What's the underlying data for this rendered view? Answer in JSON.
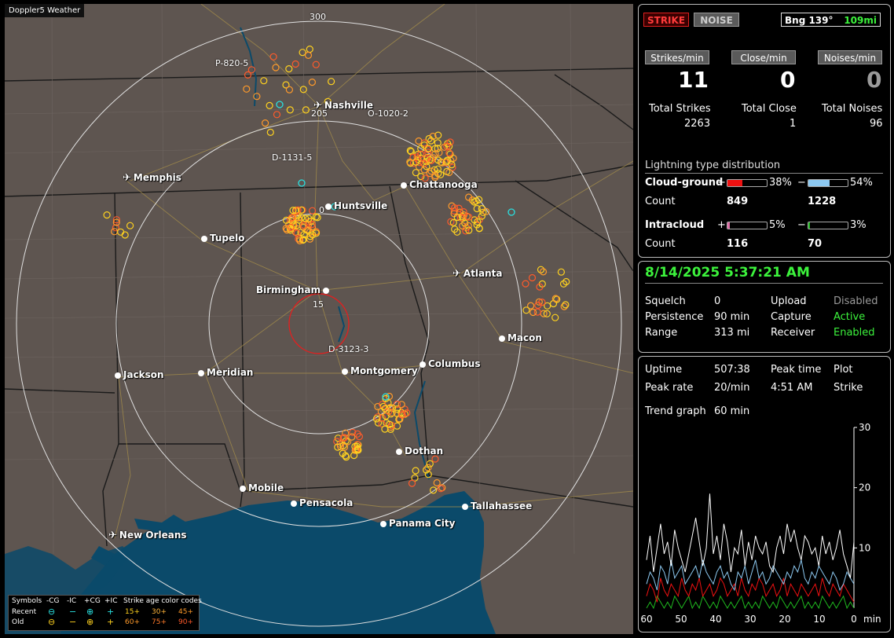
{
  "map": {
    "brand": "Doppler5 Weather",
    "ring_labels": [
      "300",
      "205",
      "15"
    ],
    "markers": [
      "P-820-5",
      "O-1020-2",
      "D-1131-5",
      "D-3123-3"
    ],
    "marker_near_huntsville": "0",
    "cities": [
      {
        "name": "Nashville",
        "kind": "airport"
      },
      {
        "name": "Memphis",
        "kind": "airport"
      },
      {
        "name": "Chattanooga",
        "kind": "city"
      },
      {
        "name": "Huntsville",
        "kind": "city"
      },
      {
        "name": "Tupelo",
        "kind": "city"
      },
      {
        "name": "Atlanta",
        "kind": "airport"
      },
      {
        "name": "Birmingham",
        "kind": "city"
      },
      {
        "name": "Macon",
        "kind": "city"
      },
      {
        "name": "Jackson",
        "kind": "city"
      },
      {
        "name": "Meridian",
        "kind": "city"
      },
      {
        "name": "Montgomery",
        "kind": "city"
      },
      {
        "name": "Columbus",
        "kind": "city"
      },
      {
        "name": "Dothan",
        "kind": "city"
      },
      {
        "name": "Mobile",
        "kind": "city"
      },
      {
        "name": "Pensacola",
        "kind": "city"
      },
      {
        "name": "Tallahassee",
        "kind": "city"
      },
      {
        "name": "Panama City",
        "kind": "city"
      },
      {
        "name": "New Orleans",
        "kind": "airport"
      }
    ],
    "legend": {
      "symbols_label": "Symbols",
      "columns": [
        "-CG",
        "-IC",
        "+CG",
        "+IC"
      ],
      "recent_label": "Recent",
      "old_label": "Old",
      "age_title": "Strike age color codes",
      "recent_ages": [
        "15+",
        "30+",
        "45+"
      ],
      "old_ages": [
        "60+",
        "75+",
        "90+"
      ]
    },
    "colors": {
      "land": "#5e5550",
      "water": "#0b4a6a",
      "range_ring": "#e0e0e0",
      "inner_ring": "#e02020",
      "recent_cyan": "#29e0e0",
      "age_yellow": "#ffd21f",
      "age_orange": "#ff9a2a",
      "age_red": "#ff5a2a"
    }
  },
  "stats": {
    "strike_button": "STRIKE",
    "noise_button": "NOISE",
    "bearing_label": "Bng 139°",
    "bearing_distance": "109mi",
    "strikes_per_min_label": "Strikes/min",
    "close_per_min_label": "Close/min",
    "noises_per_min_label": "Noises/min",
    "strikes_per_min": "11",
    "close_per_min": "0",
    "noises_per_min": "0",
    "total_strikes_label": "Total Strikes",
    "total_close_label": "Total Close",
    "total_noises_label": "Total Noises",
    "total_strikes": "2263",
    "total_close": "1",
    "total_noises": "96",
    "distribution_title": "Lightning type distribution",
    "cloud_ground_label": "Cloud-ground",
    "intracloud_label": "Intracloud",
    "count_label": "Count",
    "plus": "+",
    "minus": "−",
    "cg_pos_pct": "38%",
    "cg_neg_pct": "54%",
    "cg_pos_count": "849",
    "cg_neg_count": "1228",
    "ic_pos_pct": "5%",
    "ic_neg_pct": "3%",
    "ic_pos_count": "116",
    "ic_neg_count": "70",
    "cg_pos_fraction": 0.38,
    "cg_neg_fraction": 0.54,
    "ic_pos_fraction": 0.05,
    "ic_neg_fraction": 0.03,
    "colors": {
      "cg_pos": "#ee1111",
      "cg_neg": "#8cc8f0",
      "ic_pos": "#e070a8",
      "ic_neg": "#1fb81f"
    }
  },
  "status": {
    "datetime": "8/14/2025 5:37:21 AM",
    "squelch_label": "Squelch",
    "squelch": "0",
    "upload_label": "Upload",
    "upload": "Disabled",
    "persistence_label": "Persistence",
    "persistence": "90 min",
    "capture_label": "Capture",
    "capture": "Active",
    "range_label": "Range",
    "range": "313 mi",
    "receiver_label": "Receiver",
    "receiver": "Enabled"
  },
  "trend": {
    "uptime_label": "Uptime",
    "uptime": "507:38",
    "peak_time_label": "Peak time",
    "peak_time": "4:51 AM",
    "plot_label": "Plot",
    "plot": "Strike",
    "peak_rate_label": "Peak rate",
    "peak_rate": "20/min",
    "trend_graph_label": "Trend graph",
    "trend_graph": "60 min",
    "y_ticks": [
      "30",
      "20",
      "10"
    ],
    "x_ticks": [
      "60",
      "50",
      "40",
      "30",
      "20",
      "10",
      "0"
    ],
    "x_unit": "min"
  },
  "chart_data": {
    "type": "line",
    "title": "",
    "xlabel": "min",
    "ylabel": "",
    "xlim": [
      60,
      0
    ],
    "ylim": [
      0,
      30
    ],
    "series": [
      {
        "color": "#ffffff",
        "values": [
          8,
          12,
          6,
          10,
          14,
          9,
          11,
          7,
          13,
          10,
          8,
          6,
          9,
          12,
          15,
          11,
          7,
          10,
          19,
          9,
          12,
          8,
          14,
          11,
          6,
          10,
          9,
          13,
          7,
          11,
          8,
          12,
          10,
          9,
          11,
          7,
          6,
          10,
          12,
          9,
          14,
          11,
          13,
          10,
          8,
          12,
          11,
          9,
          10,
          7,
          12,
          9,
          11,
          8,
          10,
          13,
          9,
          7,
          5,
          11
        ]
      },
      {
        "color": "#8cc8f0",
        "values": [
          4,
          6,
          5,
          3,
          7,
          6,
          4,
          8,
          5,
          6,
          7,
          4,
          5,
          6,
          7,
          5,
          8,
          6,
          5,
          4,
          6,
          7,
          5,
          6,
          4,
          3,
          6,
          5,
          7,
          4,
          6,
          8,
          5,
          6,
          4,
          5,
          7,
          6,
          5,
          4,
          6,
          5,
          7,
          6,
          8,
          5,
          4,
          6,
          5,
          7,
          6,
          5,
          4,
          6,
          5,
          3,
          4,
          6,
          5,
          4
        ]
      },
      {
        "color": "#ee1111",
        "values": [
          2,
          4,
          3,
          1,
          5,
          3,
          2,
          4,
          3,
          2,
          5,
          3,
          2,
          4,
          3,
          5,
          2,
          3,
          4,
          2,
          3,
          5,
          4,
          2,
          3,
          4,
          2,
          5,
          3,
          2,
          4,
          3,
          5,
          4,
          2,
          3,
          4,
          2,
          3,
          5,
          2,
          4,
          3,
          2,
          4,
          3,
          2,
          3,
          4,
          2,
          5,
          3,
          2,
          4,
          3,
          2,
          4,
          3,
          2,
          1
        ]
      },
      {
        "color": "#1fb81f",
        "values": [
          0,
          1,
          0,
          2,
          1,
          0,
          1,
          0,
          2,
          1,
          0,
          1,
          2,
          0,
          1,
          0,
          2,
          1,
          0,
          1,
          0,
          2,
          1,
          0,
          1,
          0,
          1,
          2,
          0,
          1,
          0,
          1,
          0,
          2,
          1,
          0,
          1,
          0,
          2,
          1,
          0,
          1,
          0,
          1,
          2,
          0,
          1,
          0,
          1,
          0,
          2,
          1,
          0,
          1,
          0,
          1,
          2,
          0,
          1,
          0
        ]
      }
    ]
  }
}
